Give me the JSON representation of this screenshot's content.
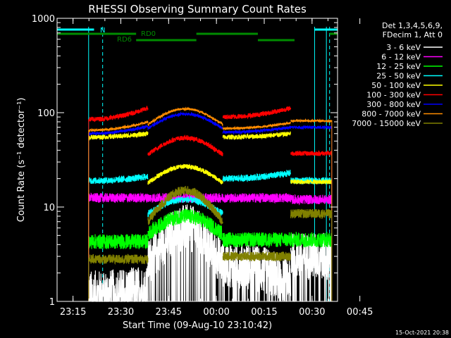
{
  "chart_data": {
    "type": "line",
    "title": "RHESSI Observing Summary Count Rates",
    "xlabel": "Start Time (09-Aug-10 23:10:42)",
    "ylabel": "Count Rate (s⁻¹ detector⁻¹)",
    "y_scale": "log",
    "ylim": [
      1,
      1000
    ],
    "xlim_minutes": [
      0,
      88
    ],
    "x_ticks": [
      {
        "label": "23:15",
        "t": 5
      },
      {
        "label": "23:30",
        "t": 20
      },
      {
        "label": "23:45",
        "t": 35
      },
      {
        "label": "00:00",
        "t": 50
      },
      {
        "label": "00:15",
        "t": 65
      },
      {
        "label": "00:30",
        "t": 80
      },
      {
        "label": "00:45",
        "t": 95
      }
    ],
    "y_ticks": [
      {
        "label": "1",
        "v": 1
      },
      {
        "label": "10",
        "v": 10
      },
      {
        "label": "100",
        "v": 100
      },
      {
        "label": "1000",
        "v": 1000
      }
    ],
    "legend_header": [
      "Det 1,3,4,5,6,9,",
      "FDecim 1, Att 0"
    ],
    "timestamp": "15-Oct-2021 20:38",
    "annotations": {
      "n_label": "N",
      "rd0_label": "RD0",
      "rd6_label": "RD6"
    },
    "segments": [
      [
        9.9,
        28.5
      ],
      [
        28.5,
        52.0
      ],
      [
        52.0,
        73.3
      ],
      [
        73.3,
        86.2
      ]
    ],
    "series": [
      {
        "name": "3 - 6 keV",
        "color": "#ffffff",
        "levels": [
          [
            1.2,
            1.4
          ],
          [
            2.5,
            6.0
          ],
          [
            2.5,
            1.6
          ],
          [
            3.0,
            3.0
          ]
        ],
        "noise": 0.25,
        "dropouts": true
      },
      {
        "name": "6 - 12 keV",
        "color": "#ff00ff",
        "levels": [
          [
            12.5,
            12.5
          ],
          [
            12.5,
            12.5
          ],
          [
            12.5,
            12.5
          ],
          [
            12.0,
            12.0
          ]
        ],
        "noise": 0.05
      },
      {
        "name": "12 - 25 keV",
        "color": "#00ff00",
        "levels": [
          [
            4.3,
            4.3
          ],
          [
            5.2,
            8.0
          ],
          [
            4.5,
            4.5
          ],
          [
            4.5,
            4.5
          ]
        ],
        "noise": 0.08
      },
      {
        "name": "25 - 50 keV",
        "color": "#00ffff",
        "levels": [
          [
            19.0,
            21.0
          ],
          [
            8.5,
            12.0
          ],
          [
            20.0,
            23.0
          ],
          [
            19.0,
            19.0
          ]
        ],
        "noise": 0.035
      },
      {
        "name": "50 - 100 keV",
        "color": "#ffff00",
        "levels": [
          [
            55.0,
            60.0
          ],
          [
            18.0,
            27.0
          ],
          [
            55.0,
            60.0
          ],
          [
            18.5,
            18.5
          ]
        ],
        "noise": 0.025
      },
      {
        "name": "100 - 300 keV",
        "color": "#ff0000",
        "levels": [
          [
            85.0,
            112.0
          ],
          [
            36.0,
            54.0
          ],
          [
            90.0,
            112.0
          ],
          [
            37.0,
            37.0
          ]
        ],
        "noise": 0.025
      },
      {
        "name": "300 - 800 keV",
        "color": "#0000ff",
        "levels": [
          [
            60.0,
            72.0
          ],
          [
            68.0,
            97.0
          ],
          [
            62.0,
            70.0
          ],
          [
            70.0,
            70.0
          ]
        ],
        "noise": 0.015
      },
      {
        "name": "800 - 7000 keV",
        "color": "#ff8c00",
        "levels": [
          [
            65.0,
            80.0
          ],
          [
            75.0,
            110.0
          ],
          [
            68.0,
            78.0
          ],
          [
            82.0,
            82.0
          ]
        ],
        "noise": 0.012
      },
      {
        "name": "7000 - 15000 keV",
        "color": "#808000",
        "levels": [
          [
            2.8,
            2.8
          ],
          [
            7.0,
            15.0
          ],
          [
            3.0,
            3.0
          ],
          [
            8.5,
            8.5
          ]
        ],
        "noise": 0.05
      }
    ]
  }
}
